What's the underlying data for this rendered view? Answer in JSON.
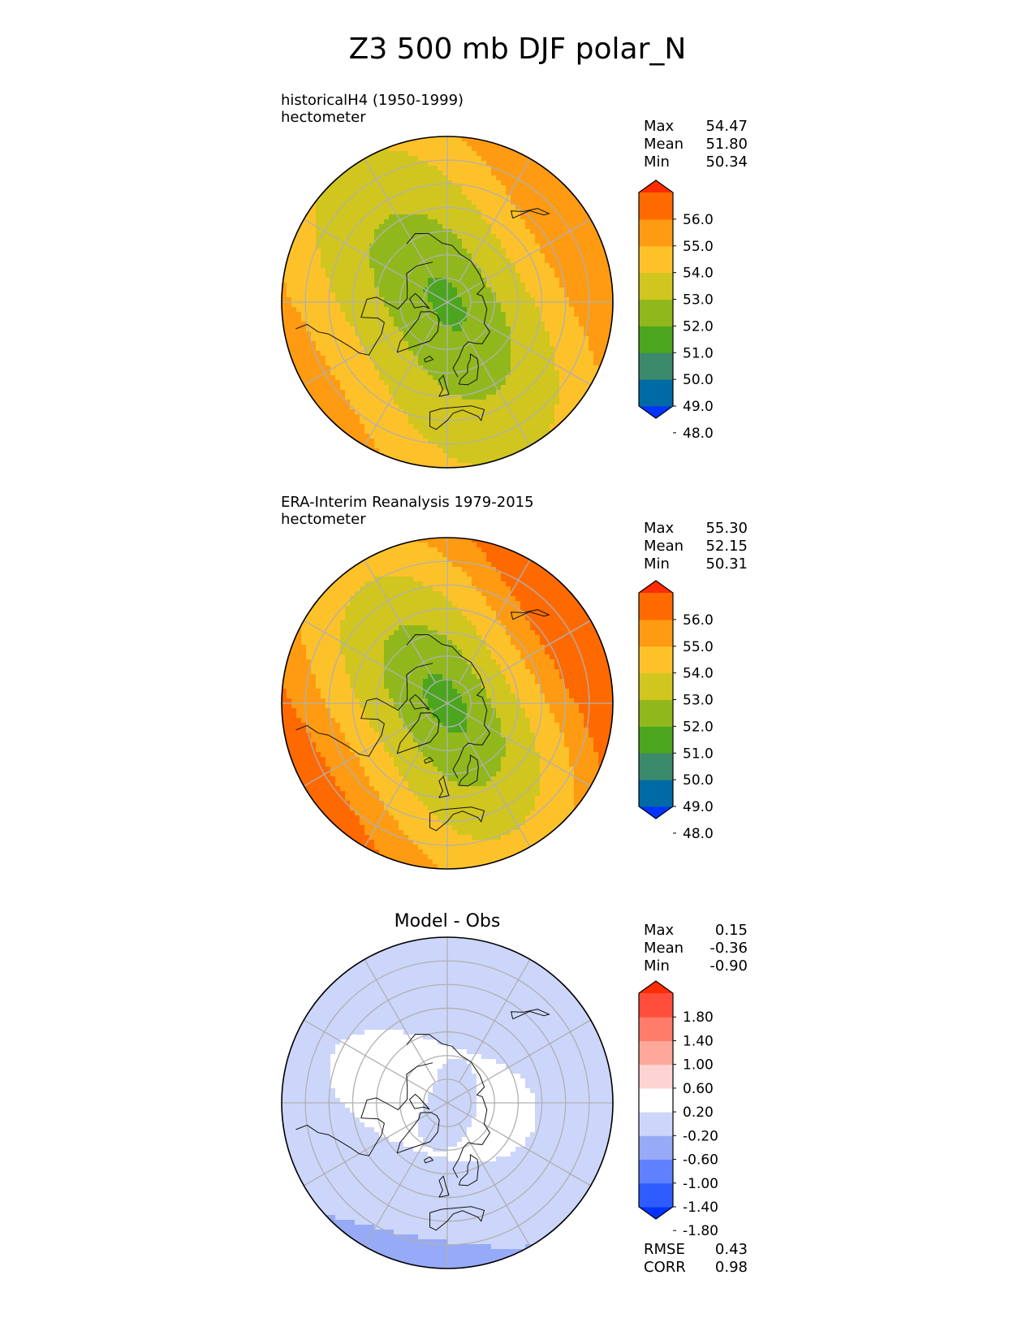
{
  "title": "Z3 500 mb DJF polar_N",
  "colors": {
    "abs": [
      "#0033ff",
      "#006aa4",
      "#3b8a6b",
      "#4ba51f",
      "#90b81d",
      "#d0c61f",
      "#fdc22a",
      "#fe9b12",
      "#ff6a00",
      "#ff2d00"
    ],
    "diff": [
      "#0033ff",
      "#2e5cff",
      "#5f80ff",
      "#96aaf7",
      "#ccd6fa",
      "#ffffff",
      "#fdd4d1",
      "#fea89c",
      "#ff7c6a",
      "#ff4f3c",
      "#ff2d00"
    ]
  },
  "chart_data": [
    {
      "type": "heatmap",
      "projection": "north-polar-stereographic",
      "panel": "top",
      "title_line1": "historicalH4 (1950-1999)",
      "title_line2": "hectometer",
      "stats": [
        {
          "label": "Max",
          "value": "54.47"
        },
        {
          "label": "Mean",
          "value": "51.80"
        },
        {
          "label": "Min",
          "value": "50.34"
        }
      ],
      "colorbar_levels": [
        48,
        49,
        50,
        51,
        52,
        53,
        54,
        55,
        56
      ],
      "colorbar_ticks": [
        "56.0",
        "55.0",
        "54.0",
        "53.0",
        "52.0",
        "51.0",
        "50.0",
        "49.0",
        "48.0"
      ],
      "field": {
        "center_lon": -60,
        "center_value": 50.6,
        "max_value": 54.47,
        "min_value": 50.34,
        "gradient": 0.05,
        "ridge_amp": 0.55,
        "ridge_phase": 30
      }
    },
    {
      "type": "heatmap",
      "projection": "north-polar-stereographic",
      "panel": "middle",
      "title_line1": "ERA-Interim Reanalysis 1979-2015",
      "title_line2": "hectometer",
      "stats": [
        {
          "label": "Max",
          "value": "55.30"
        },
        {
          "label": "Mean",
          "value": "52.15"
        },
        {
          "label": "Min",
          "value": "50.31"
        }
      ],
      "colorbar_levels": [
        48,
        49,
        50,
        51,
        52,
        53,
        54,
        55,
        56
      ],
      "colorbar_ticks": [
        "56.0",
        "55.0",
        "54.0",
        "53.0",
        "52.0",
        "51.0",
        "50.0",
        "49.0",
        "48.0"
      ],
      "field": {
        "center_lon": -60,
        "center_value": 50.4,
        "max_value": 55.3,
        "min_value": 50.31,
        "gradient": 0.066,
        "ridge_amp": 0.6,
        "ridge_phase": 30
      }
    },
    {
      "type": "heatmap",
      "projection": "north-polar-stereographic",
      "panel": "bottom",
      "title": "Model - Obs",
      "stats": [
        {
          "label": "Max",
          "value": "0.15"
        },
        {
          "label": "Mean",
          "value": "-0.36"
        },
        {
          "label": "Min",
          "value": "-0.90"
        }
      ],
      "colorbar_levels": [
        -1.8,
        -1.4,
        -1.0,
        -0.6,
        -0.2,
        0.2,
        0.6,
        1.0,
        1.4,
        1.8
      ],
      "colorbar_ticks": [
        "1.80",
        "1.40",
        "1.00",
        "0.60",
        "0.20",
        "-0.20",
        "-0.60",
        "-1.00",
        "-1.40",
        "-1.80"
      ],
      "metrics": [
        {
          "label": "RMSE",
          "value": "0.43"
        },
        {
          "label": "CORR",
          "value": "0.98"
        }
      ],
      "field": {
        "max_value": 0.15,
        "min_value": -0.9,
        "mean_value": -0.36
      }
    }
  ]
}
